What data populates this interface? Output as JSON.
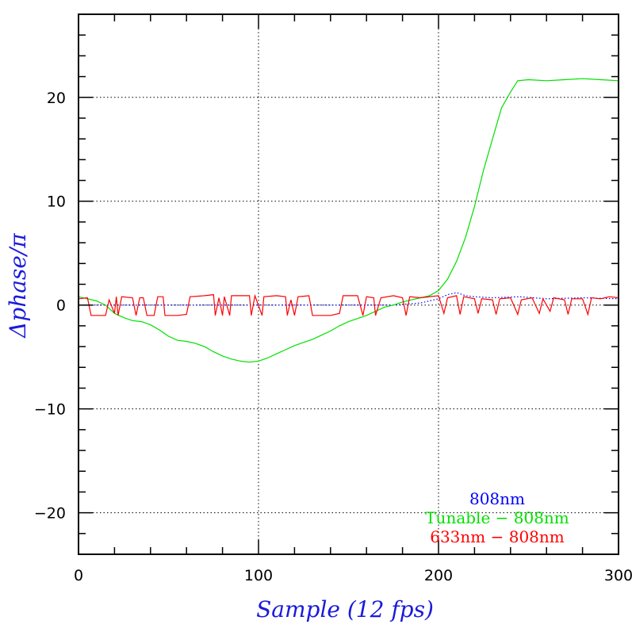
{
  "chart_data": {
    "type": "line",
    "xlabel": "Sample (12 fps)",
    "ylabel": "Δphase/π",
    "xlim": [
      0,
      300
    ],
    "ylim": [
      -24,
      28
    ],
    "x_ticks": [
      0,
      100,
      200,
      300
    ],
    "y_ticks": [
      -20,
      -10,
      0,
      10,
      20
    ],
    "x_tick_labels": [
      "0",
      "100",
      "200",
      "300"
    ],
    "y_tick_labels": [
      "−20",
      "−10",
      "0",
      "10",
      "20"
    ],
    "grid": true,
    "legend_position": "bottom-right",
    "series": [
      {
        "name": "808nm",
        "color": "#0000ff",
        "dash": "dotted",
        "points": [
          [
            0,
            0
          ],
          [
            30,
            0
          ],
          [
            60,
            0
          ],
          [
            90,
            0
          ],
          [
            120,
            0
          ],
          [
            150,
            0
          ],
          [
            175,
            0
          ],
          [
            190,
            0.2
          ],
          [
            200,
            0.6
          ],
          [
            205,
            1.0
          ],
          [
            210,
            1.2
          ],
          [
            215,
            0.9
          ],
          [
            220,
            0.8
          ],
          [
            230,
            0.7
          ],
          [
            245,
            0.8
          ],
          [
            260,
            0.6
          ],
          [
            280,
            0.7
          ],
          [
            300,
            0.6
          ]
        ]
      },
      {
        "name": "Tunable − 808nm",
        "color": "#00e000",
        "dash": "solid",
        "points": [
          [
            0,
            0.8
          ],
          [
            5,
            0.6
          ],
          [
            10,
            0.4
          ],
          [
            15,
            0
          ],
          [
            20,
            -0.8
          ],
          [
            25,
            -1.2
          ],
          [
            30,
            -1.5
          ],
          [
            35,
            -1.6
          ],
          [
            40,
            -1.9
          ],
          [
            45,
            -2.4
          ],
          [
            50,
            -3.0
          ],
          [
            55,
            -3.4
          ],
          [
            60,
            -3.5
          ],
          [
            65,
            -3.7
          ],
          [
            70,
            -4.0
          ],
          [
            75,
            -4.5
          ],
          [
            80,
            -4.9
          ],
          [
            85,
            -5.2
          ],
          [
            90,
            -5.4
          ],
          [
            95,
            -5.5
          ],
          [
            100,
            -5.4
          ],
          [
            105,
            -5.1
          ],
          [
            110,
            -4.7
          ],
          [
            115,
            -4.3
          ],
          [
            120,
            -3.9
          ],
          [
            125,
            -3.6
          ],
          [
            130,
            -3.3
          ],
          [
            135,
            -2.9
          ],
          [
            140,
            -2.5
          ],
          [
            145,
            -2.0
          ],
          [
            150,
            -1.6
          ],
          [
            155,
            -1.3
          ],
          [
            160,
            -1.0
          ],
          [
            165,
            -0.6
          ],
          [
            170,
            -0.2
          ],
          [
            175,
            0
          ],
          [
            180,
            0.3
          ],
          [
            185,
            0.5
          ],
          [
            190,
            0.7
          ],
          [
            195,
            0.9
          ],
          [
            200,
            1.4
          ],
          [
            205,
            2.5
          ],
          [
            210,
            4.2
          ],
          [
            215,
            6.5
          ],
          [
            220,
            9.5
          ],
          [
            225,
            13.0
          ],
          [
            230,
            16.0
          ],
          [
            235,
            19.0
          ],
          [
            240,
            20.5
          ],
          [
            244,
            21.6
          ],
          [
            250,
            21.7
          ],
          [
            260,
            21.6
          ],
          [
            270,
            21.7
          ],
          [
            280,
            21.8
          ],
          [
            290,
            21.7
          ],
          [
            300,
            21.6
          ]
        ]
      },
      {
        "name": "633nm − 808nm",
        "color": "#ff0000",
        "dash": "solid",
        "points": [
          [
            0,
            0.6
          ],
          [
            5,
            0.7
          ],
          [
            7,
            -1.0
          ],
          [
            15,
            -1.0
          ],
          [
            17,
            0.5
          ],
          [
            20,
            -0.8
          ],
          [
            21,
            0.8
          ],
          [
            22,
            -1.0
          ],
          [
            24,
            0.8
          ],
          [
            30,
            0.7
          ],
          [
            32,
            -1.0
          ],
          [
            34,
            0.7
          ],
          [
            36,
            0.7
          ],
          [
            38,
            -1.0
          ],
          [
            42,
            -1.0
          ],
          [
            44,
            0.8
          ],
          [
            47,
            0.8
          ],
          [
            48,
            -1.0
          ],
          [
            55,
            -1.0
          ],
          [
            60,
            -0.9
          ],
          [
            62,
            0.8
          ],
          [
            70,
            0.9
          ],
          [
            75,
            1.0
          ],
          [
            76,
            -1.0
          ],
          [
            78,
            0.7
          ],
          [
            80,
            -1.0
          ],
          [
            81,
            0.8
          ],
          [
            84,
            -1.0
          ],
          [
            85,
            0.9
          ],
          [
            95,
            0.9
          ],
          [
            96,
            -1.0
          ],
          [
            98,
            0.9
          ],
          [
            102,
            -1.0
          ],
          [
            103,
            0.8
          ],
          [
            110,
            0.9
          ],
          [
            115,
            0.8
          ],
          [
            116,
            -1.0
          ],
          [
            118,
            0.5
          ],
          [
            120,
            -1.0
          ],
          [
            122,
            0.8
          ],
          [
            128,
            0.9
          ],
          [
            130,
            -1.0
          ],
          [
            135,
            -1.0
          ],
          [
            140,
            -1.0
          ],
          [
            145,
            -0.8
          ],
          [
            147,
            0.9
          ],
          [
            155,
            0.9
          ],
          [
            158,
            -1.0
          ],
          [
            160,
            0.8
          ],
          [
            164,
            0.7
          ],
          [
            165,
            -1.0
          ],
          [
            168,
            0.7
          ],
          [
            175,
            0.9
          ],
          [
            180,
            0.7
          ],
          [
            182,
            -1.0
          ],
          [
            184,
            0.8
          ],
          [
            190,
            0.7
          ],
          [
            200,
            0.9
          ],
          [
            203,
            -0.8
          ],
          [
            205,
            0.7
          ],
          [
            210,
            0.9
          ],
          [
            212,
            -0.9
          ],
          [
            214,
            0.8
          ],
          [
            220,
            0.6
          ],
          [
            222,
            -0.8
          ],
          [
            224,
            0.6
          ],
          [
            230,
            0.5
          ],
          [
            232,
            -0.9
          ],
          [
            234,
            0.6
          ],
          [
            240,
            0.7
          ],
          [
            244,
            -0.9
          ],
          [
            246,
            0.5
          ],
          [
            252,
            0.7
          ],
          [
            256,
            -0.8
          ],
          [
            258,
            0.6
          ],
          [
            262,
            -0.6
          ],
          [
            264,
            0.7
          ],
          [
            270,
            0.5
          ],
          [
            272,
            -0.9
          ],
          [
            274,
            0.6
          ],
          [
            280,
            0.6
          ],
          [
            283,
            -0.9
          ],
          [
            285,
            0.7
          ],
          [
            290,
            0.6
          ],
          [
            295,
            0.8
          ],
          [
            300,
            0.7
          ]
        ]
      }
    ]
  }
}
